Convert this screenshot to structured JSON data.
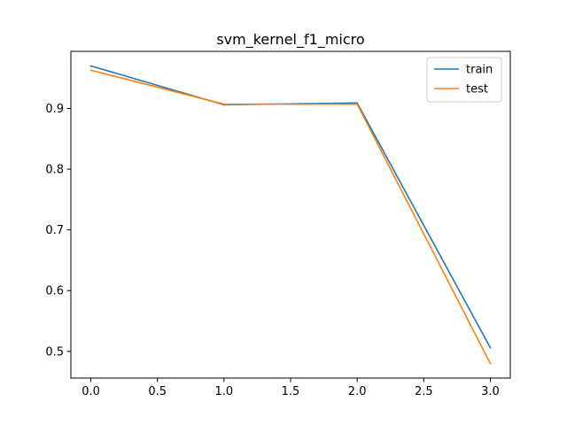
{
  "chart_data": {
    "type": "line",
    "title": "svm_kernel_f1_micro",
    "xlabel": "",
    "ylabel": "",
    "x": [
      0,
      1,
      2,
      3
    ],
    "series": [
      {
        "name": "train",
        "color": "#1f77b4",
        "values": [
          0.97,
          0.906,
          0.909,
          0.506
        ]
      },
      {
        "name": "test",
        "color": "#ff7f0e",
        "values": [
          0.963,
          0.907,
          0.907,
          0.48
        ]
      }
    ],
    "xlim": [
      -0.15,
      3.15
    ],
    "ylim": [
      0.456,
      0.994
    ],
    "xticks": [
      0.0,
      0.5,
      1.0,
      1.5,
      2.0,
      2.5,
      3.0
    ],
    "xtick_labels": [
      "0.0",
      "0.5",
      "1.0",
      "1.5",
      "2.0",
      "2.5",
      "3.0"
    ],
    "yticks": [
      0.5,
      0.6,
      0.7,
      0.8,
      0.9
    ],
    "ytick_labels": [
      "0.5",
      "0.6",
      "0.7",
      "0.8",
      "0.9"
    ],
    "grid": false,
    "legend_position": "top-right"
  }
}
